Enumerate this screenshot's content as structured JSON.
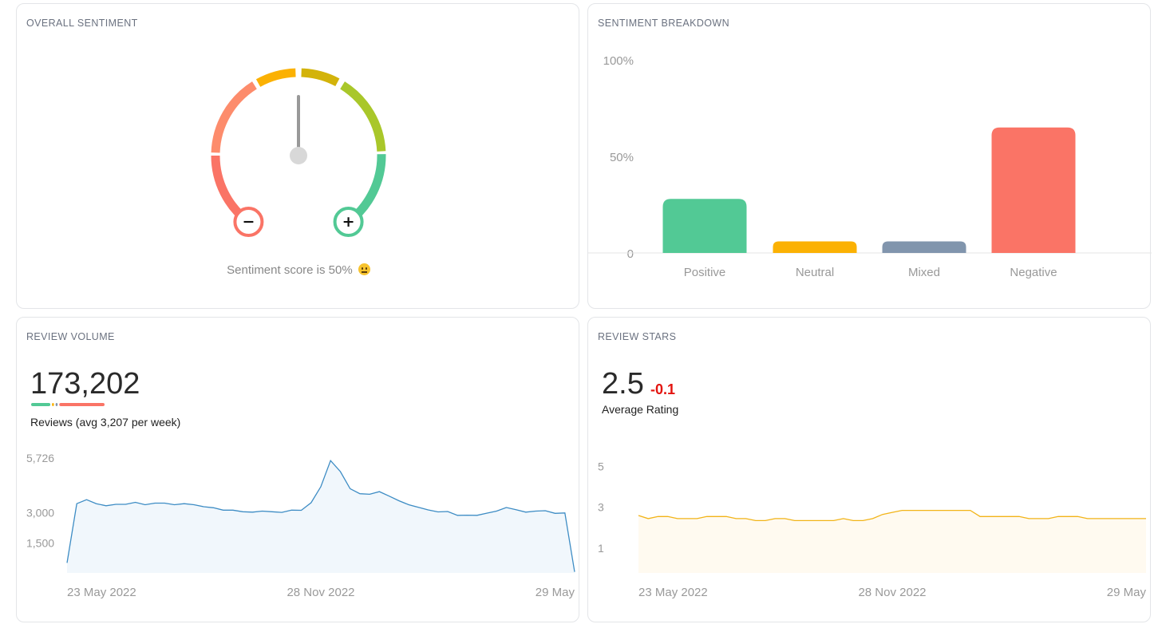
{
  "cards": {
    "overall": {
      "title": "OVERALL SENTIMENT",
      "caption": "Sentiment score is 50%",
      "emoji": "neutral-face-icon"
    },
    "breakdown": {
      "title": "SENTIMENT BREAKDOWN"
    },
    "volume": {
      "title": "REVIEW VOLUME",
      "total": "173,202",
      "subtitle": "Reviews (avg 3,207 per week)"
    },
    "stars": {
      "title": "REVIEW STARS",
      "value": "2.5",
      "delta": "-0.1",
      "subtitle": "Average Rating"
    }
  },
  "colors": {
    "positive": "#52c995",
    "neutral": "#fbb103",
    "mixed": "#8195ad",
    "negative": "#fa7466",
    "volume_line": "#3d8cc4",
    "volume_fill": "#f1f7fc",
    "stars_line": "#f2b418",
    "stars_fill": "#fffaf0",
    "delta": "#e3140f"
  },
  "chart_data": [
    {
      "type": "gauge",
      "value": 50,
      "unit": "%",
      "min_label": "−",
      "max_label": "+"
    },
    {
      "type": "bar",
      "categories": [
        "Positive",
        "Neutral",
        "Mixed",
        "Negative"
      ],
      "values": [
        28,
        6,
        6,
        65
      ],
      "ylim": [
        0,
        100
      ],
      "yticks": [
        0,
        50,
        100
      ],
      "ytick_labels": [
        "0",
        "50%",
        "100%"
      ]
    },
    {
      "type": "area",
      "x_tick_labels": [
        "23 May 2022",
        "28 Nov 2022",
        "29 May"
      ],
      "x_tick_index": [
        0,
        26,
        51
      ],
      "yticks": [
        1500,
        3000,
        5726
      ],
      "ytick_labels": [
        "1,500",
        "3,000",
        "5,726"
      ],
      "ylim": [
        0,
        5726
      ],
      "sentiment_bar": [
        28,
        3,
        3,
        66
      ],
      "values": [
        500,
        3450,
        3650,
        3450,
        3350,
        3420,
        3420,
        3520,
        3400,
        3480,
        3480,
        3400,
        3450,
        3400,
        3300,
        3250,
        3130,
        3130,
        3050,
        3030,
        3080,
        3050,
        3020,
        3130,
        3120,
        3500,
        4300,
        5600,
        5050,
        4200,
        3950,
        3920,
        4050,
        3830,
        3600,
        3400,
        3270,
        3140,
        3040,
        3060,
        2870,
        2880,
        2870,
        2980,
        3080,
        3260,
        3150,
        3030,
        3080,
        3100,
        2970,
        2990,
        50
      ]
    },
    {
      "type": "area",
      "x_tick_labels": [
        "23 May 2022",
        "28 Nov 2022",
        "29 May"
      ],
      "x_tick_index": [
        0,
        26,
        51
      ],
      "yticks": [
        1,
        3,
        5
      ],
      "ytick_labels": [
        "1",
        "3",
        "5"
      ],
      "ylim": [
        -0.2,
        5.4
      ],
      "values": [
        2.6,
        2.45,
        2.55,
        2.55,
        2.45,
        2.45,
        2.45,
        2.55,
        2.55,
        2.55,
        2.45,
        2.45,
        2.35,
        2.35,
        2.45,
        2.45,
        2.35,
        2.35,
        2.35,
        2.35,
        2.35,
        2.45,
        2.35,
        2.35,
        2.45,
        2.65,
        2.75,
        2.85,
        2.85,
        2.85,
        2.85,
        2.85,
        2.85,
        2.85,
        2.85,
        2.55,
        2.55,
        2.55,
        2.55,
        2.55,
        2.45,
        2.45,
        2.45,
        2.55,
        2.55,
        2.55,
        2.45,
        2.45,
        2.45,
        2.45,
        2.45,
        2.45,
        2.45
      ]
    }
  ]
}
